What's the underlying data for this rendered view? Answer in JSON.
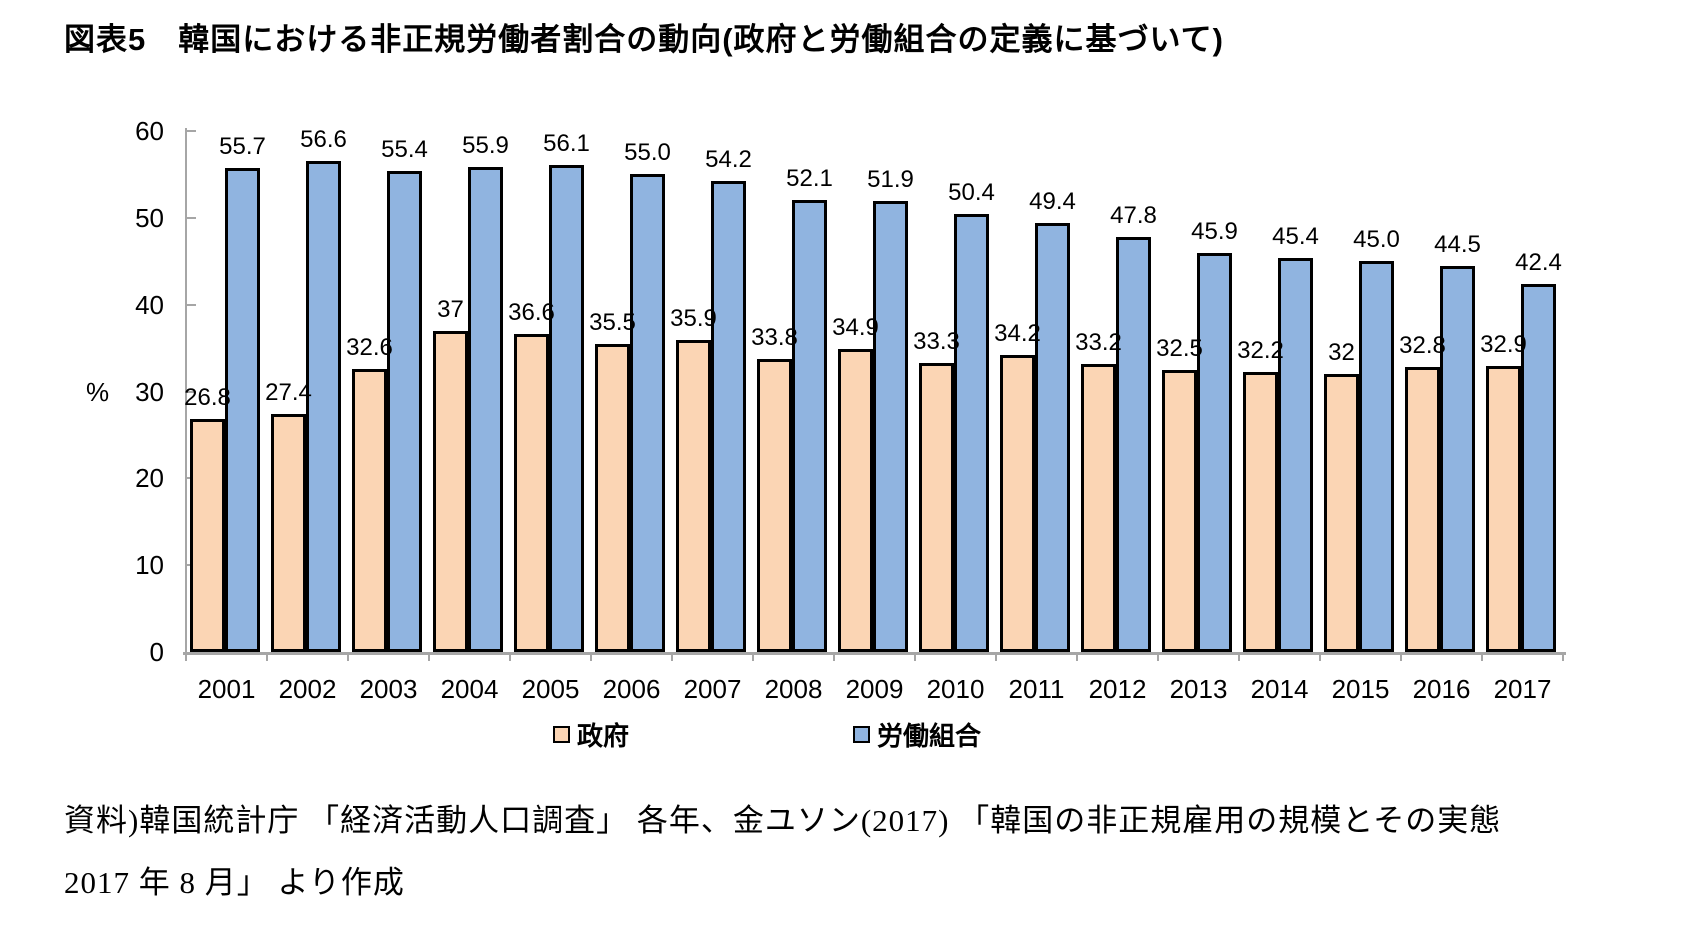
{
  "title": "図表5　韓国における非正規労働者割合の動向(政府と労働組合の定義に基づいて)",
  "chart_data": {
    "type": "bar",
    "categories": [
      "2001",
      "2002",
      "2003",
      "2004",
      "2005",
      "2006",
      "2007",
      "2008",
      "2009",
      "2010",
      "2011",
      "2012",
      "2013",
      "2014",
      "2015",
      "2016",
      "2017"
    ],
    "series": [
      {
        "name": "政府",
        "color": "#FBD5B4",
        "values": [
          26.8,
          27.4,
          32.6,
          37,
          36.6,
          35.5,
          35.9,
          33.8,
          34.9,
          33.3,
          34.2,
          33.2,
          32.5,
          32.2,
          32,
          32.8,
          32.9
        ],
        "labels": [
          "26.8",
          "27.4",
          "32.6",
          "37",
          "36.6",
          "35.5",
          "35.9",
          "33.8",
          "34.9",
          "33.3",
          "34.2",
          "33.2",
          "32.5",
          "32.2",
          "32",
          "32.8",
          "32.9"
        ]
      },
      {
        "name": "労働組合",
        "color": "#90B4E0",
        "values": [
          55.7,
          56.6,
          55.4,
          55.9,
          56.1,
          55.0,
          54.2,
          52.1,
          51.9,
          50.4,
          49.4,
          47.8,
          45.9,
          45.4,
          45.0,
          44.5,
          42.4
        ],
        "labels": [
          "55.7",
          "56.6",
          "55.4",
          "55.9",
          "56.1",
          "55.0",
          "54.2",
          "52.1",
          "51.9",
          "50.4",
          "49.4",
          "47.8",
          "45.9",
          "45.4",
          "45.0",
          "44.5",
          "42.4"
        ]
      }
    ],
    "title": "図表5　韓国における非正規労働者割合の動向(政府と労働組合の定義に基づいて)",
    "xlabel": "",
    "ylabel": "%",
    "ylim": [
      0,
      60
    ],
    "yticks": [
      0,
      10,
      20,
      30,
      40,
      50,
      60
    ],
    "grid": false,
    "legend_position": "bottom",
    "bar_border_color": "#000000",
    "axis_color": "#a6a6a6"
  },
  "legend": {
    "items": [
      {
        "label": "政府",
        "color": "#FBD5B4"
      },
      {
        "label": "労働組合",
        "color": "#90B4E0"
      }
    ]
  },
  "source": {
    "line1": "資料)韓国統計庁 「経済活動人口調査」 各年、金ユソン(2017) 「韓国の非正規雇用の規模とその実態",
    "line2": "2017 年 8 月」 より作成"
  }
}
